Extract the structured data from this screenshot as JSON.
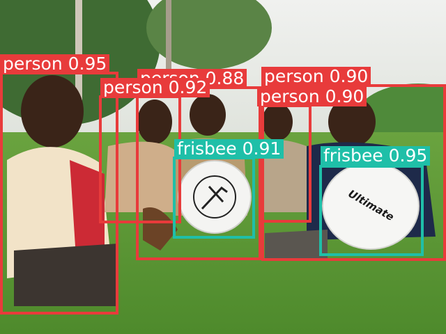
{
  "detections": [
    {
      "label": "person 0.95",
      "class": "person",
      "confidence": 0.95,
      "color": "#e83b3b"
    },
    {
      "label": "person 0.88",
      "class": "person",
      "confidence": 0.88,
      "color": "#e83b3b"
    },
    {
      "label": "person 0.92",
      "class": "person",
      "confidence": 0.92,
      "color": "#e83b3b"
    },
    {
      "label": "person 0.90",
      "class": "person",
      "confidence": 0.9,
      "color": "#e83b3b"
    },
    {
      "label": "person 0.90",
      "class": "person",
      "confidence": 0.9,
      "color": "#e83b3b"
    },
    {
      "label": "frisbee 0.91",
      "class": "frisbee",
      "confidence": 0.91,
      "color": "#1fbfa8"
    },
    {
      "label": "frisbee 0.95",
      "class": "frisbee",
      "confidence": 0.95,
      "color": "#1fbfa8"
    }
  ],
  "frisbee_print": "Ultimate"
}
